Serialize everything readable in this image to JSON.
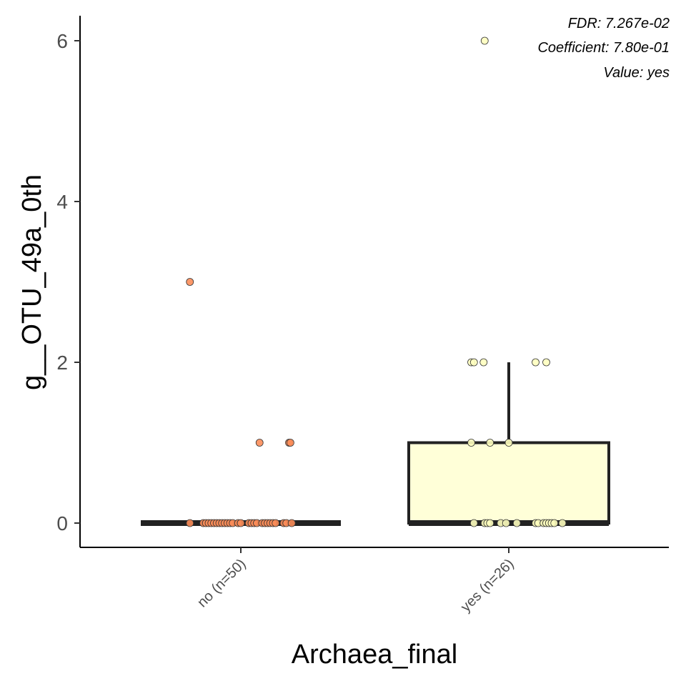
{
  "chart_data": {
    "type": "box",
    "xlabel": "Archaea_final",
    "ylabel": "g__OTU_49a_0th",
    "ylim": [
      -0.3,
      6.3
    ],
    "yticks": [
      0,
      2,
      4,
      6
    ],
    "categories": [
      "no (n=50)",
      "yes (n=26)"
    ],
    "annotations": [
      "FDR: 7.267e-02",
      "Coefficient: 7.80e-01",
      "Value: yes"
    ],
    "groups": [
      {
        "label": "no (n=50)",
        "fill": "#fc8d59",
        "box_fill": "#fc8d59",
        "q1": 0,
        "median": 0,
        "q3": 0,
        "whisker_low": 0,
        "whisker_high": 0,
        "points": [
          {
            "x_offset": -0.19,
            "y": 3
          },
          {
            "x_offset": 0.07,
            "y": 1
          },
          {
            "x_offset": 0.18,
            "y": 1
          },
          {
            "x_offset": 0.185,
            "y": 1
          },
          {
            "x_offset": -0.19,
            "y": 0
          },
          {
            "x_offset": -0.14,
            "y": 0
          },
          {
            "x_offset": -0.13,
            "y": 0
          },
          {
            "x_offset": -0.12,
            "y": 0
          },
          {
            "x_offset": -0.11,
            "y": 0
          },
          {
            "x_offset": -0.1,
            "y": 0
          },
          {
            "x_offset": -0.09,
            "y": 0
          },
          {
            "x_offset": -0.08,
            "y": 0
          },
          {
            "x_offset": -0.07,
            "y": 0
          },
          {
            "x_offset": -0.06,
            "y": 0
          },
          {
            "x_offset": -0.05,
            "y": 0
          },
          {
            "x_offset": -0.04,
            "y": 0
          },
          {
            "x_offset": -0.03,
            "y": 0
          },
          {
            "x_offset": -0.01,
            "y": 0
          },
          {
            "x_offset": 0.0,
            "y": 0
          },
          {
            "x_offset": 0.03,
            "y": 0
          },
          {
            "x_offset": 0.04,
            "y": 0
          },
          {
            "x_offset": 0.05,
            "y": 0
          },
          {
            "x_offset": 0.06,
            "y": 0
          },
          {
            "x_offset": 0.08,
            "y": 0
          },
          {
            "x_offset": 0.09,
            "y": 0
          },
          {
            "x_offset": 0.1,
            "y": 0
          },
          {
            "x_offset": 0.11,
            "y": 0
          },
          {
            "x_offset": 0.12,
            "y": 0
          },
          {
            "x_offset": 0.13,
            "y": 0
          },
          {
            "x_offset": 0.16,
            "y": 0
          },
          {
            "x_offset": 0.17,
            "y": 0
          },
          {
            "x_offset": 0.19,
            "y": 0
          }
        ]
      },
      {
        "label": "yes (n=26)",
        "fill": "#ffffbf",
        "box_fill": "#ffffd8",
        "q1": 0,
        "median": 0,
        "q3": 1,
        "whisker_low": 0,
        "whisker_high": 2,
        "points": [
          {
            "x_offset": -0.09,
            "y": 6
          },
          {
            "x_offset": -0.14,
            "y": 2
          },
          {
            "x_offset": -0.13,
            "y": 2
          },
          {
            "x_offset": -0.094,
            "y": 2
          },
          {
            "x_offset": 0.1,
            "y": 2
          },
          {
            "x_offset": 0.14,
            "y": 2
          },
          {
            "x_offset": -0.14,
            "y": 1
          },
          {
            "x_offset": -0.07,
            "y": 1
          },
          {
            "x_offset": 0.0,
            "y": 1
          },
          {
            "x_offset": -0.13,
            "y": 0
          },
          {
            "x_offset": -0.09,
            "y": 0
          },
          {
            "x_offset": -0.08,
            "y": 0
          },
          {
            "x_offset": -0.07,
            "y": 0
          },
          {
            "x_offset": -0.03,
            "y": 0
          },
          {
            "x_offset": -0.01,
            "y": 0
          },
          {
            "x_offset": 0.03,
            "y": 0
          },
          {
            "x_offset": 0.1,
            "y": 0
          },
          {
            "x_offset": 0.11,
            "y": 0
          },
          {
            "x_offset": 0.13,
            "y": 0
          },
          {
            "x_offset": 0.14,
            "y": 0
          },
          {
            "x_offset": 0.15,
            "y": 0
          },
          {
            "x_offset": 0.16,
            "y": 0
          },
          {
            "x_offset": 0.17,
            "y": 0
          },
          {
            "x_offset": 0.2,
            "y": 0
          }
        ]
      }
    ]
  }
}
